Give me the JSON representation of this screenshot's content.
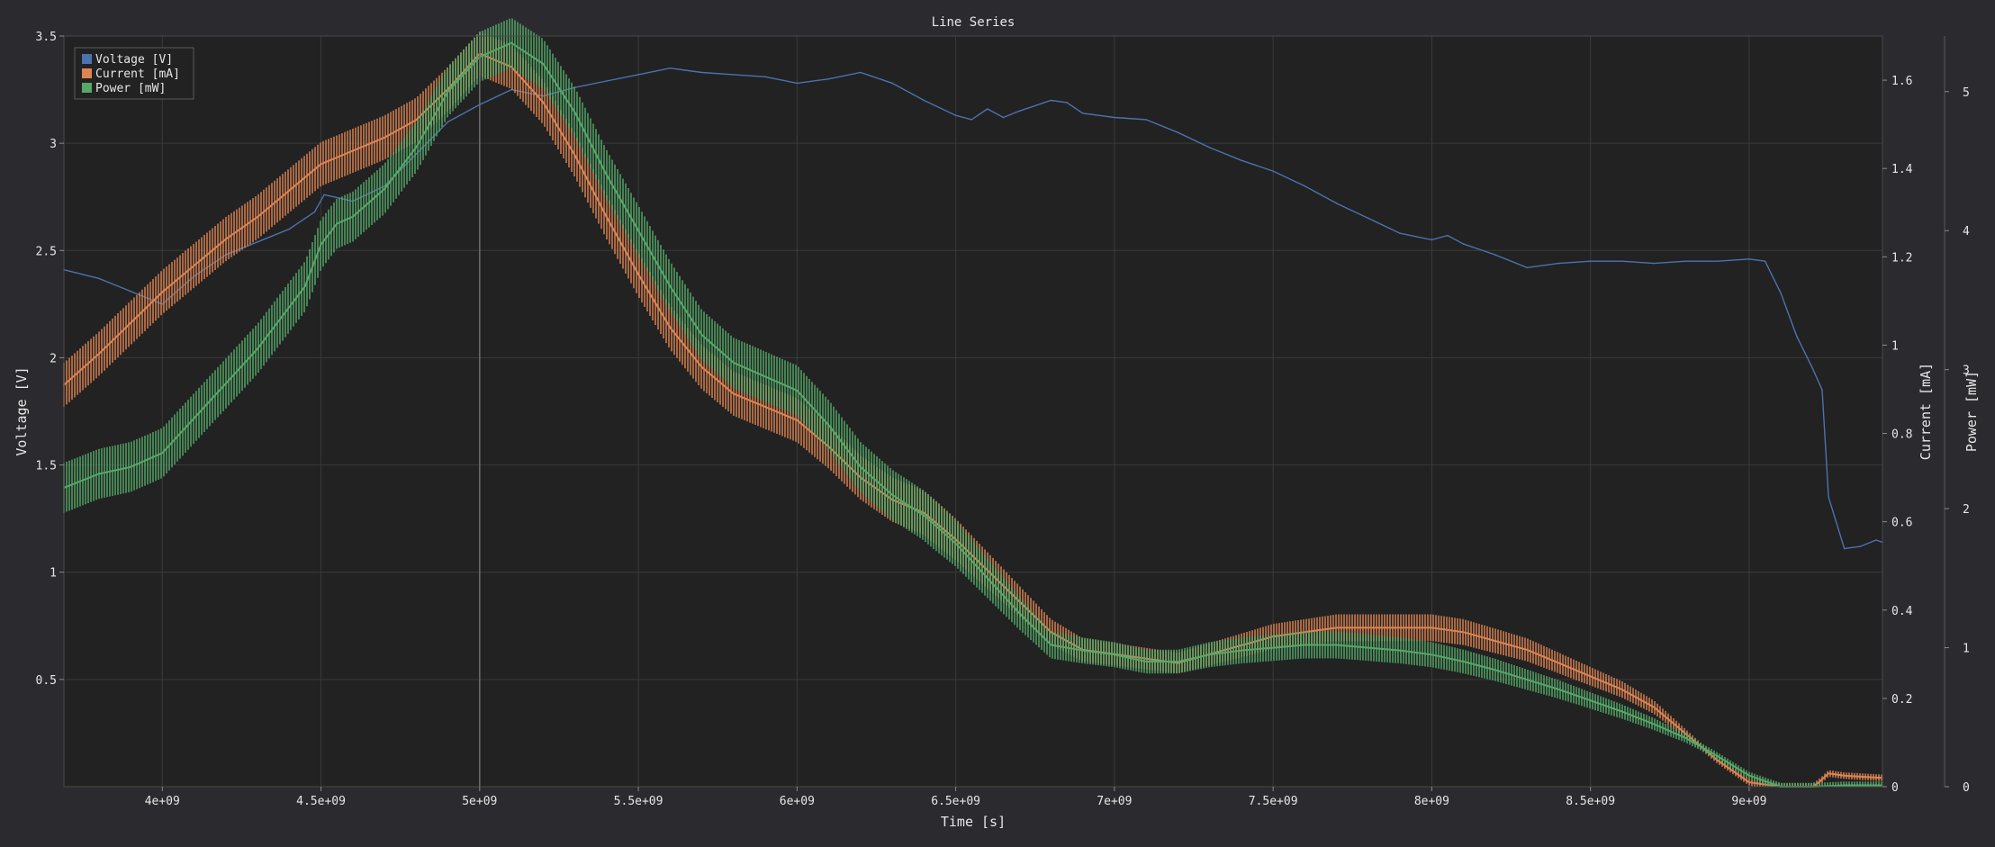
{
  "colors": {
    "background": "#2b2b2f",
    "plot_background": "#222222",
    "grid": "#3a3a3a",
    "text": "#e6e6e6",
    "voltage": "#4c72b0",
    "current": "#dd8452",
    "power": "#55a868",
    "cursor": "#6e6e6e"
  },
  "chart_data": {
    "type": "line",
    "title": "Line Series",
    "xlabel": "Time [s]",
    "xlim": [
      3690000000,
      9420000000
    ],
    "x_ticks": [
      4000000000,
      4500000000,
      5000000000,
      5500000000,
      6000000000,
      6500000000,
      7000000000,
      7500000000,
      8000000000,
      8500000000,
      9000000000
    ],
    "x_tick_labels": [
      "4e+09",
      "4.5e+09",
      "5e+09",
      "5.5e+09",
      "6e+09",
      "6.5e+09",
      "7e+09",
      "7.5e+09",
      "8e+09",
      "8.5e+09",
      "9e+09"
    ],
    "cursor_x": 5000000000,
    "legend": {
      "position": "top-left",
      "entries": [
        "Voltage [V]",
        "Current [mA]",
        "Power [mW]"
      ]
    },
    "axes": [
      {
        "id": "voltage",
        "label": "Voltage [V]",
        "side": "left",
        "ylim": [
          0.0,
          3.5
        ],
        "ticks": [
          0.5,
          1,
          1.5,
          2,
          2.5,
          3,
          3.5
        ],
        "tick_labels": [
          "0.5",
          "1",
          "1.5",
          "2",
          "2.5",
          "3",
          "3.5"
        ]
      },
      {
        "id": "current",
        "label": "Current [mA]",
        "side": "right",
        "ylim": [
          0.0,
          1.7
        ],
        "ticks": [
          0,
          0.2,
          0.4,
          0.6,
          0.8,
          1,
          1.2,
          1.4,
          1.6
        ],
        "tick_labels": [
          "0",
          "0.2",
          "0.4",
          "0.6",
          "0.8",
          "1",
          "1.2",
          "1.4",
          "1.6"
        ]
      },
      {
        "id": "power",
        "label": "Power [mW]",
        "side": "right-outer",
        "ylim": [
          0.0,
          5.4
        ],
        "ticks": [
          0,
          1,
          2,
          3,
          4,
          5
        ],
        "tick_labels": [
          "0",
          "1",
          "2",
          "3",
          "4",
          "5"
        ]
      }
    ],
    "series": [
      {
        "name": "Voltage [V]",
        "axis": "voltage",
        "color_key": "voltage",
        "band": 0,
        "x": [
          3690000000,
          3800000000,
          3900000000,
          4000000000,
          4100000000,
          4200000000,
          4300000000,
          4400000000,
          4480000000,
          4510000000,
          4600000000,
          4700000000,
          4800000000,
          4900000000,
          5000000000,
          5100000000,
          5200000000,
          5300000000,
          5400000000,
          5500000000,
          5600000000,
          5700000000,
          5800000000,
          5900000000,
          6000000000,
          6100000000,
          6200000000,
          6300000000,
          6400000000,
          6500000000,
          6550000000,
          6600000000,
          6650000000,
          6700000000,
          6800000000,
          6850000000,
          6900000000,
          7000000000,
          7100000000,
          7200000000,
          7300000000,
          7400000000,
          7500000000,
          7600000000,
          7700000000,
          7800000000,
          7900000000,
          8000000000,
          8050000000,
          8100000000,
          8200000000,
          8300000000,
          8400000000,
          8500000000,
          8600000000,
          8700000000,
          8800000000,
          8900000000,
          9000000000,
          9050000000,
          9100000000,
          9150000000,
          9200000000,
          9230000000,
          9250000000,
          9300000000,
          9350000000,
          9400000000,
          9420000000
        ],
        "values": [
          2.41,
          2.37,
          2.31,
          2.25,
          2.38,
          2.48,
          2.54,
          2.6,
          2.68,
          2.76,
          2.73,
          2.8,
          2.95,
          3.1,
          3.18,
          3.25,
          3.22,
          3.26,
          3.29,
          3.32,
          3.35,
          3.33,
          3.32,
          3.31,
          3.28,
          3.3,
          3.33,
          3.28,
          3.2,
          3.13,
          3.11,
          3.16,
          3.12,
          3.15,
          3.2,
          3.19,
          3.14,
          3.12,
          3.11,
          3.05,
          2.98,
          2.92,
          2.87,
          2.8,
          2.72,
          2.65,
          2.58,
          2.55,
          2.57,
          2.53,
          2.48,
          2.42,
          2.44,
          2.45,
          2.45,
          2.44,
          2.45,
          2.45,
          2.46,
          2.45,
          2.3,
          2.1,
          1.95,
          1.85,
          1.35,
          1.11,
          1.12,
          1.15,
          1.14
        ]
      },
      {
        "name": "Current [mA]",
        "axis": "current",
        "color_key": "current",
        "band": 0.05,
        "x": [
          3690000000,
          3800000000,
          3900000000,
          4000000000,
          4100000000,
          4200000000,
          4300000000,
          4400000000,
          4500000000,
          4600000000,
          4700000000,
          4800000000,
          4900000000,
          5000000000,
          5100000000,
          5200000000,
          5300000000,
          5400000000,
          5500000000,
          5600000000,
          5700000000,
          5800000000,
          5900000000,
          6000000000,
          6100000000,
          6200000000,
          6300000000,
          6400000000,
          6500000000,
          6600000000,
          6700000000,
          6800000000,
          6900000000,
          7000000000,
          7100000000,
          7200000000,
          7300000000,
          7400000000,
          7500000000,
          7600000000,
          7700000000,
          7800000000,
          7900000000,
          8000000000,
          8100000000,
          8200000000,
          8300000000,
          8400000000,
          8500000000,
          8600000000,
          8700000000,
          8800000000,
          8900000000,
          9000000000,
          9100000000,
          9200000000,
          9220000000,
          9250000000,
          9300000000,
          9420000000
        ],
        "values": [
          0.91,
          0.98,
          1.05,
          1.12,
          1.18,
          1.24,
          1.29,
          1.35,
          1.41,
          1.44,
          1.47,
          1.51,
          1.58,
          1.66,
          1.63,
          1.55,
          1.43,
          1.29,
          1.16,
          1.04,
          0.95,
          0.89,
          0.86,
          0.83,
          0.77,
          0.7,
          0.65,
          0.62,
          0.56,
          0.49,
          0.42,
          0.35,
          0.31,
          0.3,
          0.29,
          0.28,
          0.3,
          0.32,
          0.34,
          0.35,
          0.36,
          0.36,
          0.36,
          0.36,
          0.35,
          0.33,
          0.31,
          0.28,
          0.25,
          0.22,
          0.18,
          0.12,
          0.06,
          0.01,
          0.0,
          0.0,
          0.01,
          0.03,
          0.025,
          0.02
        ]
      },
      {
        "name": "Power [mW]",
        "axis": "power",
        "color_key": "power",
        "band": 0.18,
        "x": [
          3690000000,
          3800000000,
          3900000000,
          4000000000,
          4100000000,
          4200000000,
          4300000000,
          4400000000,
          4450000000,
          4500000000,
          4550000000,
          4600000000,
          4700000000,
          4800000000,
          4900000000,
          5000000000,
          5100000000,
          5200000000,
          5300000000,
          5400000000,
          5500000000,
          5600000000,
          5700000000,
          5800000000,
          5900000000,
          6000000000,
          6100000000,
          6200000000,
          6300000000,
          6400000000,
          6500000000,
          6600000000,
          6700000000,
          6800000000,
          6900000000,
          7000000000,
          7100000000,
          7200000000,
          7300000000,
          7400000000,
          7500000000,
          7600000000,
          7700000000,
          7800000000,
          7900000000,
          8000000000,
          8100000000,
          8200000000,
          8300000000,
          8400000000,
          8500000000,
          8600000000,
          8700000000,
          8800000000,
          8900000000,
          9000000000,
          9100000000,
          9200000000,
          9300000000,
          9420000000
        ],
        "values": [
          2.15,
          2.25,
          2.3,
          2.4,
          2.65,
          2.9,
          3.15,
          3.45,
          3.6,
          3.9,
          4.05,
          4.1,
          4.3,
          4.6,
          5.0,
          5.25,
          5.35,
          5.2,
          4.85,
          4.4,
          4.0,
          3.6,
          3.25,
          3.05,
          2.95,
          2.85,
          2.6,
          2.3,
          2.1,
          1.95,
          1.75,
          1.5,
          1.25,
          1.02,
          0.98,
          0.95,
          0.9,
          0.9,
          0.95,
          0.98,
          1.0,
          1.02,
          1.02,
          1.0,
          0.98,
          0.95,
          0.9,
          0.84,
          0.77,
          0.7,
          0.62,
          0.54,
          0.45,
          0.35,
          0.22,
          0.08,
          0.0,
          0.0,
          0.01,
          0.01
        ]
      }
    ]
  }
}
